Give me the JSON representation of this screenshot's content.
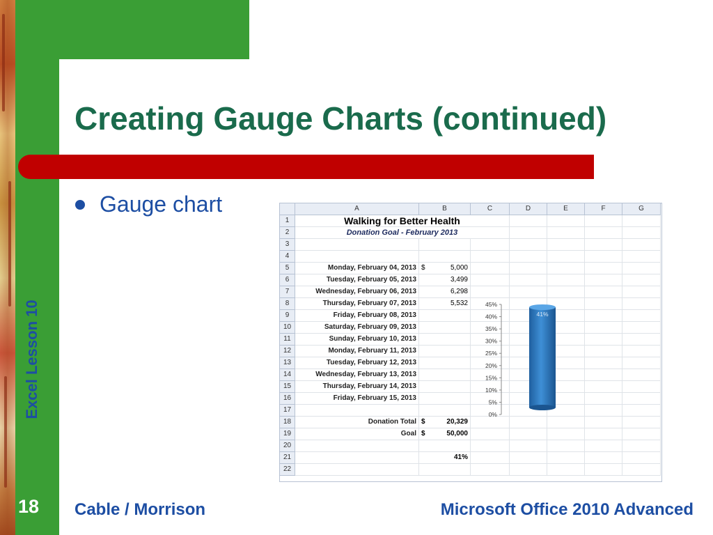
{
  "slide": {
    "title": "Creating Gauge Charts (continued)",
    "bullet": "Gauge chart",
    "side_label": "Excel Lesson 10",
    "page_number": "18",
    "footer_left": "Cable / Morrison",
    "footer_right": "Microsoft Office 2010 Advanced"
  },
  "colors": {
    "green": "#3a9e35",
    "red": "#c00000",
    "blue_text": "#1d4ea3",
    "title": "#1a6b4c"
  },
  "spreadsheet": {
    "columns": [
      "A",
      "B",
      "C",
      "D",
      "E",
      "F",
      "G"
    ],
    "title": "Walking for Better Health",
    "subtitle": "Donation Goal - February 2013",
    "rows": [
      {
        "n": "1"
      },
      {
        "n": "2"
      },
      {
        "n": "3"
      },
      {
        "n": "4"
      },
      {
        "n": "5",
        "label": "Monday, February 04, 2013",
        "cur": "$",
        "value": "5,000"
      },
      {
        "n": "6",
        "label": "Tuesday, February 05, 2013",
        "cur": "",
        "value": "3,499"
      },
      {
        "n": "7",
        "label": "Wednesday, February 06, 2013",
        "cur": "",
        "value": "6,298"
      },
      {
        "n": "8",
        "label": "Thursday, February 07, 2013",
        "cur": "",
        "value": "5,532"
      },
      {
        "n": "9",
        "label": "Friday, February 08, 2013"
      },
      {
        "n": "10",
        "label": "Saturday, February 09, 2013"
      },
      {
        "n": "11",
        "label": "Sunday, February 10, 2013"
      },
      {
        "n": "12",
        "label": "Monday, February 11, 2013"
      },
      {
        "n": "13",
        "label": "Tuesday, February 12, 2013"
      },
      {
        "n": "14",
        "label": "Wednesday, February 13, 2013"
      },
      {
        "n": "15",
        "label": "Thursday, February 14, 2013"
      },
      {
        "n": "16",
        "label": "Friday, February 15, 2013"
      },
      {
        "n": "17"
      },
      {
        "n": "18",
        "label": "Donation Total",
        "cur": "$",
        "value": "20,329"
      },
      {
        "n": "19",
        "label": "Goal",
        "cur": "$",
        "value": "50,000"
      },
      {
        "n": "20"
      },
      {
        "n": "21",
        "value": "41%"
      },
      {
        "n": "22"
      }
    ]
  },
  "chart_data": {
    "type": "bar",
    "categories": [
      ""
    ],
    "values": [
      41
    ],
    "data_labels": [
      "41%"
    ],
    "y_ticks": [
      "0%",
      "5%",
      "10%",
      "15%",
      "20%",
      "25%",
      "30%",
      "35%",
      "40%",
      "45%"
    ],
    "ylim": [
      0,
      45
    ],
    "bar_color": "#2e7cc4"
  }
}
